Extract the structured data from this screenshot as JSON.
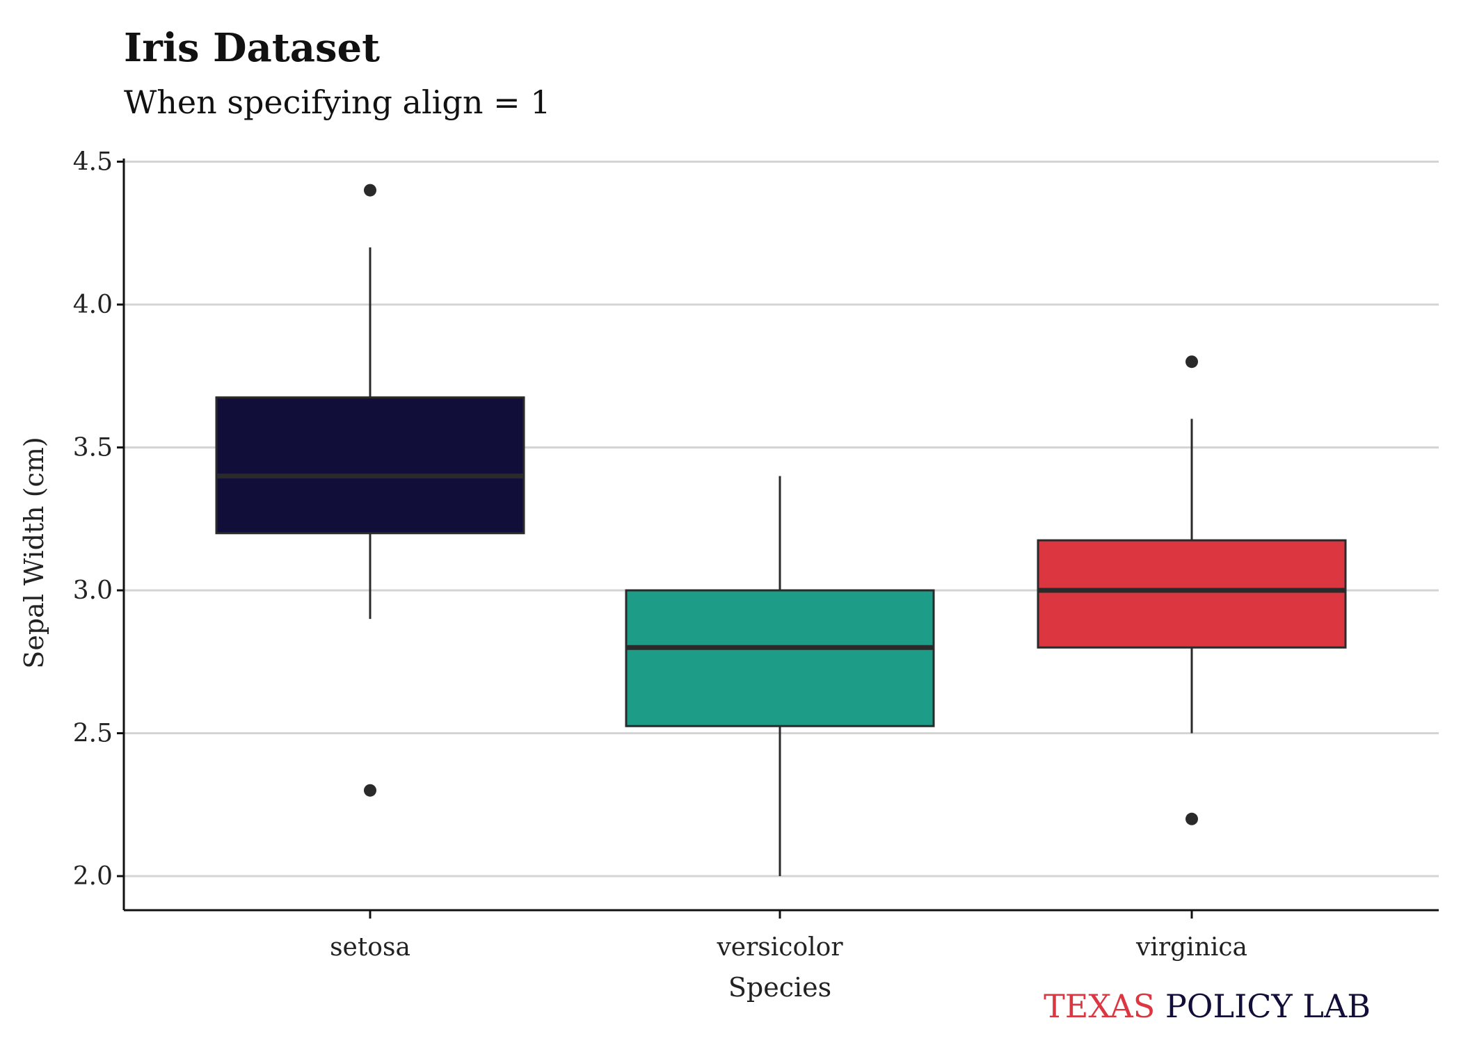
{
  "chart_data": {
    "type": "boxplot",
    "title": "Iris Dataset",
    "subtitle": "When specifying align = 1",
    "xlabel": "Species",
    "ylabel": "Sepal Width (cm)",
    "ylim": [
      1.88,
      4.5
    ],
    "yticks": [
      2.0,
      2.5,
      3.0,
      3.5,
      4.0,
      4.5
    ],
    "yticklabels": [
      "2.0",
      "2.5",
      "3.0",
      "3.5",
      "4.0",
      "4.5"
    ],
    "grid": "horizontal",
    "categories": [
      "setosa",
      "versicolor",
      "virginica"
    ],
    "boxes": [
      {
        "category": "setosa",
        "color": "#120E3A",
        "whisker_low": 2.9,
        "q1": 3.2,
        "median": 3.4,
        "q3": 3.675,
        "whisker_high": 4.2,
        "outliers": [
          4.4,
          2.3
        ]
      },
      {
        "category": "versicolor",
        "color": "#1D9C88",
        "whisker_low": 2.0,
        "q1": 2.525,
        "median": 2.8,
        "q3": 3.0,
        "whisker_high": 3.4,
        "outliers": []
      },
      {
        "category": "virginica",
        "color": "#DC3741",
        "whisker_low": 2.5,
        "q1": 2.8,
        "median": 3.0,
        "q3": 3.175,
        "whisker_high": 3.6,
        "outliers": [
          3.8,
          2.2
        ]
      }
    ]
  },
  "caption": {
    "part1": "TEXAS",
    "part1_color": "#DC3741",
    "part2": " POLICY LAB",
    "part2_color": "#120E3A"
  }
}
